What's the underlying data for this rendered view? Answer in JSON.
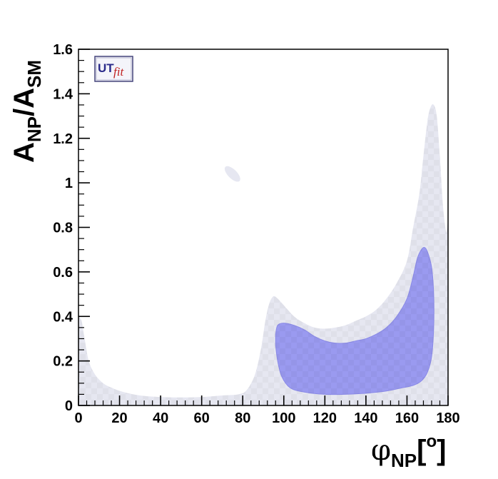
{
  "chart_data": {
    "type": "contour",
    "xlim": [
      0,
      180
    ],
    "ylim": [
      0,
      1.6
    ],
    "x_major_ticks": [
      0,
      20,
      40,
      60,
      80,
      100,
      120,
      140,
      160,
      180
    ],
    "y_major_ticks": [
      0,
      0.2,
      0.4,
      0.6,
      0.8,
      1,
      1.2,
      1.4,
      1.6
    ],
    "x_tick_labels": [
      "0",
      "20",
      "40",
      "60",
      "80",
      "100",
      "120",
      "140",
      "160",
      "180"
    ],
    "y_tick_labels": [
      "0",
      "0.2",
      "0.4",
      "0.6",
      "0.8",
      "1",
      "1.2",
      "1.4",
      "1.6"
    ],
    "xlabel": {
      "main": "φ",
      "sub": "NP",
      "bracket_open": "[",
      "sup": "o",
      "bracket_close": "]"
    },
    "ylabel": {
      "a1": "A",
      "sub1": "NP",
      "slash": "/",
      "a2": "A",
      "sub2": "SM"
    },
    "logo": {
      "text_ut": "UT",
      "text_fit": "fit"
    },
    "colors": {
      "outer_region": "#e6e7f1",
      "inner_region": "#9a9af0",
      "inner_region_stroke": "#8a8ae6",
      "axis": "#000000"
    },
    "regions": [
      {
        "level": "outer",
        "points": [
          [
            0,
            0.4
          ],
          [
            1.5,
            0.38
          ],
          [
            3,
            0.3
          ],
          [
            5,
            0.2
          ],
          [
            8,
            0.14
          ],
          [
            12,
            0.1
          ],
          [
            16,
            0.08
          ],
          [
            22,
            0.06
          ],
          [
            30,
            0.045
          ],
          [
            40,
            0.038
          ],
          [
            50,
            0.036
          ],
          [
            60,
            0.038
          ],
          [
            70,
            0.045
          ],
          [
            78,
            0.05
          ],
          [
            82,
            0.07
          ],
          [
            86,
            0.14
          ],
          [
            89,
            0.26
          ],
          [
            91,
            0.38
          ],
          [
            93,
            0.46
          ],
          [
            95,
            0.49
          ],
          [
            97,
            0.48
          ],
          [
            100,
            0.45
          ],
          [
            105,
            0.4
          ],
          [
            110,
            0.37
          ],
          [
            115,
            0.35
          ],
          [
            120,
            0.345
          ],
          [
            125,
            0.35
          ],
          [
            130,
            0.36
          ],
          [
            135,
            0.38
          ],
          [
            140,
            0.4
          ],
          [
            145,
            0.43
          ],
          [
            150,
            0.48
          ],
          [
            155,
            0.55
          ],
          [
            160,
            0.65
          ],
          [
            163,
            0.8
          ],
          [
            166,
            0.95
          ],
          [
            168,
            1.12
          ],
          [
            170,
            1.28
          ],
          [
            171.5,
            1.34
          ],
          [
            173,
            1.35
          ],
          [
            174.5,
            1.3
          ],
          [
            176,
            1.12
          ],
          [
            177.5,
            0.9
          ],
          [
            179,
            0.78
          ],
          [
            180,
            0.76
          ],
          [
            180,
            0
          ],
          [
            0,
            0
          ]
        ]
      },
      {
        "level": "outer_island",
        "center": [
          75,
          1.04
        ],
        "semi_axes": [
          2.2,
          0.045
        ],
        "rotation_deg": 45
      },
      {
        "level": "inner",
        "points": [
          [
            96,
            0.32
          ],
          [
            97,
            0.36
          ],
          [
            100,
            0.37
          ],
          [
            105,
            0.36
          ],
          [
            110,
            0.34
          ],
          [
            115,
            0.31
          ],
          [
            120,
            0.29
          ],
          [
            125,
            0.28
          ],
          [
            130,
            0.28
          ],
          [
            135,
            0.29
          ],
          [
            140,
            0.3
          ],
          [
            145,
            0.32
          ],
          [
            150,
            0.35
          ],
          [
            155,
            0.4
          ],
          [
            160,
            0.48
          ],
          [
            163,
            0.58
          ],
          [
            165,
            0.66
          ],
          [
            167,
            0.7
          ],
          [
            168.5,
            0.71
          ],
          [
            170,
            0.69
          ],
          [
            172,
            0.62
          ],
          [
            173,
            0.5
          ],
          [
            173,
            0.35
          ],
          [
            172,
            0.22
          ],
          [
            170,
            0.15
          ],
          [
            167,
            0.11
          ],
          [
            163,
            0.09
          ],
          [
            158,
            0.08
          ],
          [
            150,
            0.065
          ],
          [
            140,
            0.055
          ],
          [
            130,
            0.05
          ],
          [
            120,
            0.05
          ],
          [
            110,
            0.06
          ],
          [
            103,
            0.08
          ],
          [
            99,
            0.13
          ],
          [
            97,
            0.2
          ],
          [
            96,
            0.27
          ]
        ]
      }
    ]
  }
}
